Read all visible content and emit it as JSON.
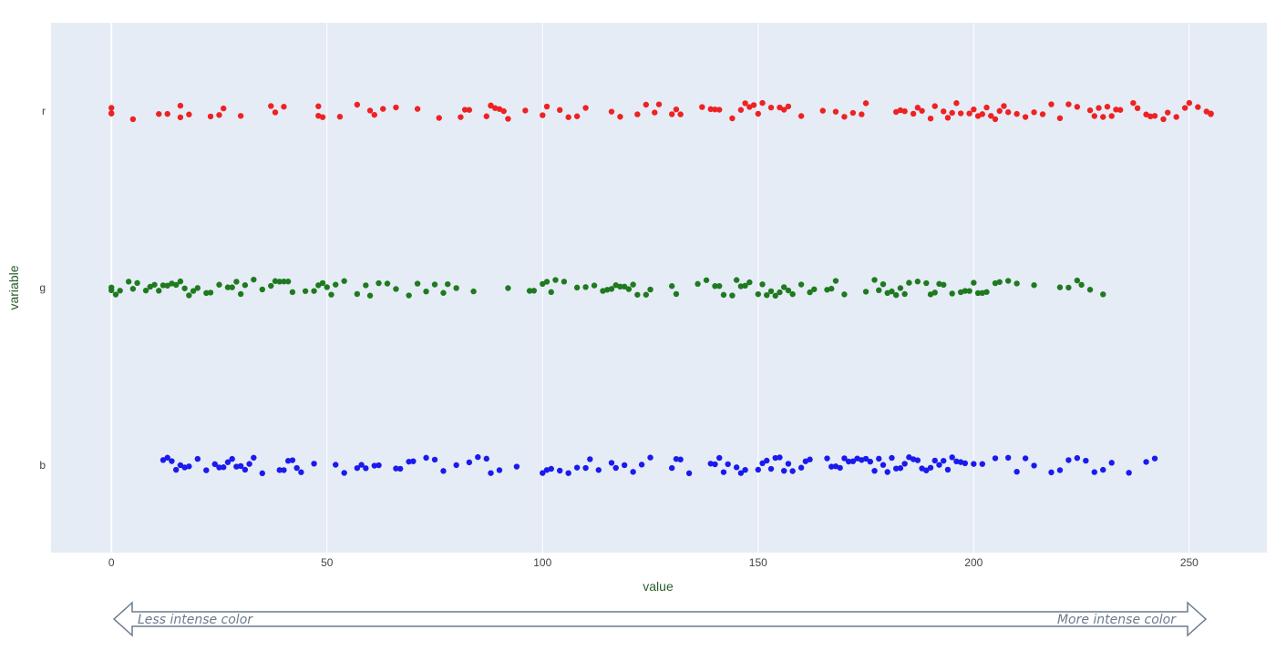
{
  "chart_data": {
    "type": "strip",
    "xlabel": "value",
    "ylabel": "variable",
    "xlim": [
      -14,
      268
    ],
    "x_ticks": [
      0,
      50,
      100,
      150,
      200,
      250
    ],
    "categories": [
      "r",
      "g",
      "b"
    ],
    "colors": {
      "r": "#ee2222",
      "g": "#1f7a1f",
      "b": "#1a1aee"
    },
    "background": "#e5ecf6",
    "series": [
      {
        "name": "r",
        "values": [
          0,
          0,
          0,
          5,
          11,
          13,
          16,
          16,
          18,
          23,
          25,
          26,
          30,
          37,
          38,
          40,
          48,
          48,
          49,
          53,
          57,
          60,
          61,
          63,
          66,
          71,
          76,
          81,
          82,
          83,
          87,
          88,
          88,
          89,
          90,
          91,
          92,
          96,
          100,
          101,
          104,
          106,
          108,
          110,
          116,
          118,
          122,
          124,
          126,
          127,
          130,
          131,
          132,
          137,
          139,
          140,
          141,
          144,
          146,
          147,
          148,
          149,
          150,
          151,
          153,
          155,
          156,
          157,
          160,
          165,
          168,
          170,
          172,
          174,
          175,
          182,
          183,
          184,
          186,
          187,
          188,
          190,
          191,
          193,
          194,
          195,
          196,
          197,
          199,
          200,
          201,
          202,
          203,
          204,
          205,
          206,
          207,
          208,
          210,
          212,
          214,
          216,
          218,
          220,
          222,
          224,
          227,
          228,
          229,
          230,
          231,
          232,
          233,
          234,
          237,
          238,
          240,
          241,
          242,
          244,
          245,
          247,
          249,
          250,
          252,
          254,
          255,
          255,
          255
        ]
      },
      {
        "name": "g",
        "values": [
          0,
          0,
          1,
          2,
          4,
          5,
          6,
          8,
          9,
          10,
          11,
          12,
          13,
          14,
          15,
          16,
          17,
          18,
          19,
          20,
          22,
          23,
          25,
          27,
          28,
          29,
          30,
          31,
          33,
          35,
          37,
          38,
          39,
          40,
          41,
          42,
          45,
          47,
          48,
          49,
          50,
          51,
          52,
          54,
          57,
          59,
          60,
          62,
          64,
          66,
          69,
          71,
          73,
          75,
          77,
          78,
          80,
          84,
          92,
          97,
          98,
          100,
          101,
          102,
          103,
          105,
          108,
          110,
          112,
          114,
          115,
          116,
          117,
          118,
          119,
          120,
          121,
          122,
          124,
          125,
          130,
          131,
          136,
          138,
          140,
          141,
          142,
          144,
          145,
          146,
          147,
          148,
          150,
          151,
          152,
          153,
          154,
          155,
          156,
          157,
          158,
          160,
          162,
          163,
          166,
          167,
          168,
          170,
          175,
          177,
          178,
          179,
          180,
          181,
          182,
          183,
          184,
          185,
          187,
          189,
          190,
          191,
          192,
          193,
          195,
          197,
          198,
          199,
          200,
          201,
          202,
          203,
          205,
          206,
          208,
          210,
          214,
          220,
          222,
          224,
          225,
          227,
          230
        ]
      },
      {
        "name": "b",
        "values": [
          12,
          13,
          14,
          15,
          16,
          17,
          18,
          20,
          22,
          24,
          25,
          26,
          27,
          28,
          29,
          30,
          31,
          32,
          33,
          35,
          39,
          40,
          41,
          42,
          43,
          44,
          47,
          52,
          54,
          57,
          58,
          59,
          61,
          62,
          66,
          67,
          69,
          70,
          73,
          75,
          77,
          80,
          83,
          85,
          87,
          88,
          90,
          94,
          100,
          101,
          102,
          104,
          106,
          108,
          110,
          111,
          113,
          116,
          117,
          119,
          121,
          123,
          125,
          130,
          131,
          132,
          134,
          139,
          140,
          141,
          142,
          143,
          145,
          146,
          147,
          150,
          151,
          152,
          153,
          154,
          155,
          156,
          157,
          158,
          160,
          161,
          162,
          166,
          167,
          168,
          169,
          170,
          171,
          172,
          173,
          174,
          175,
          176,
          177,
          178,
          179,
          180,
          181,
          182,
          183,
          184,
          185,
          186,
          187,
          188,
          189,
          190,
          191,
          192,
          193,
          194,
          195,
          196,
          197,
          198,
          200,
          202,
          205,
          208,
          210,
          212,
          214,
          218,
          220,
          222,
          224,
          226,
          228,
          230,
          232,
          236,
          240,
          242
        ]
      }
    ],
    "annotation": {
      "left": "Less intense color",
      "right": "More intense color"
    }
  }
}
